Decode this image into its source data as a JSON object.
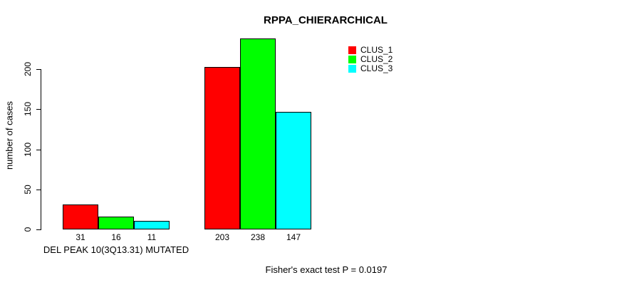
{
  "chart_data": {
    "type": "bar",
    "title": "RPPA_CHIERARCHICAL",
    "xlabel": "",
    "ylabel": "number of cases",
    "ylim": [
      0,
      240
    ],
    "yticks": [
      0,
      50,
      100,
      150,
      200
    ],
    "grid": false,
    "legend_position": "top-right",
    "categories": [
      "DEL PEAK 10(3Q13.31) MUTATED",
      ""
    ],
    "series": [
      {
        "name": "CLUS_1",
        "color": "#ff0000",
        "values": [
          31,
          203
        ]
      },
      {
        "name": "CLUS_2",
        "color": "#00ff00",
        "values": [
          16,
          238
        ]
      },
      {
        "name": "CLUS_3",
        "color": "#00ffff",
        "values": [
          11,
          147
        ]
      }
    ],
    "bar_value_labels": [
      [
        "31",
        "16",
        "11"
      ],
      [
        "203",
        "238",
        "147"
      ]
    ],
    "annotation": "Fisher's exact test P = 0.0197"
  },
  "colors": {
    "axis": "#000000",
    "text": "#000000",
    "background": "#ffffff"
  }
}
